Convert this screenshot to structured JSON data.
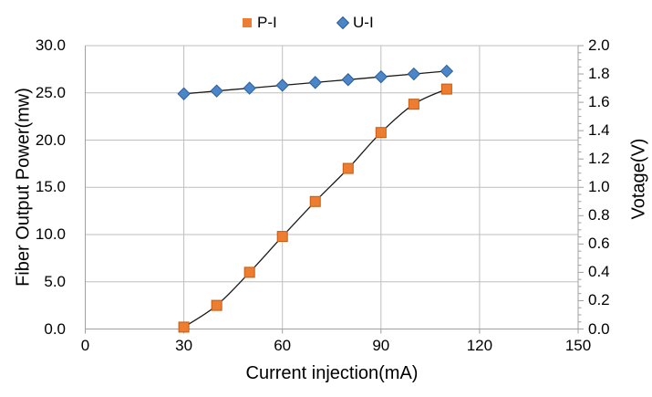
{
  "chart_data": {
    "type": "line",
    "title": "",
    "xlabel": "Current injection(mA)",
    "ylabel_left": "Fiber Output Power(mw)",
    "ylabel_right": "Votage(V)",
    "xlim": [
      0,
      150
    ],
    "ylim_left": [
      0.0,
      30.0
    ],
    "ylim_right": [
      0.0,
      2.0
    ],
    "grid": true,
    "legend_position": "top-center",
    "x_tick_labels": [
      "0",
      "30",
      "60",
      "90",
      "120",
      "150"
    ],
    "x_tick_values": [
      0,
      30,
      60,
      90,
      120,
      150
    ],
    "y_left_tick_labels": [
      "0.0",
      "5.0",
      "10.0",
      "15.0",
      "20.0",
      "25.0",
      "30.0"
    ],
    "y_left_tick_values": [
      0,
      5,
      10,
      15,
      20,
      25,
      30
    ],
    "y_right_tick_labels": [
      "0.0",
      "0.2",
      "0.4",
      "0.6",
      "0.8",
      "1.0",
      "1.2",
      "1.4",
      "1.6",
      "1.8",
      "2.0"
    ],
    "y_right_tick_values": [
      0,
      0.2,
      0.4,
      0.6,
      0.8,
      1.0,
      1.2,
      1.4,
      1.6,
      1.8,
      2.0
    ],
    "y_right_minor_tick_step": 0.05,
    "x": [
      30,
      40,
      50,
      60,
      70,
      80,
      90,
      100,
      110
    ],
    "series": [
      {
        "name": "P-I",
        "axis": "left",
        "marker": "square",
        "marker_color": "#ED7D31",
        "marker_border": "#C55A11",
        "line_color": "#1a1a1a",
        "values": [
          0.2,
          2.5,
          6.0,
          9.8,
          13.5,
          17.0,
          20.8,
          23.8,
          25.4
        ]
      },
      {
        "name": "U-I",
        "axis": "right",
        "marker": "diamond",
        "marker_color": "#4A86C8",
        "marker_border": "#2E5E9E",
        "line_color": "#1a1a1a",
        "values": [
          1.66,
          1.68,
          1.7,
          1.72,
          1.74,
          1.76,
          1.78,
          1.8,
          1.82
        ]
      }
    ],
    "colors": {
      "gridline": "#BFBFBF",
      "axis_line": "#A0A0A0",
      "background": "#FFFFFF",
      "text": "#000000",
      "pi_orange": "#ED7D31",
      "ui_blue": "#4A86C8"
    }
  },
  "legend": {
    "items": [
      {
        "label": "P-I",
        "marker": "orange-square"
      },
      {
        "label": "U-I",
        "marker": "blue-diamond"
      }
    ]
  }
}
